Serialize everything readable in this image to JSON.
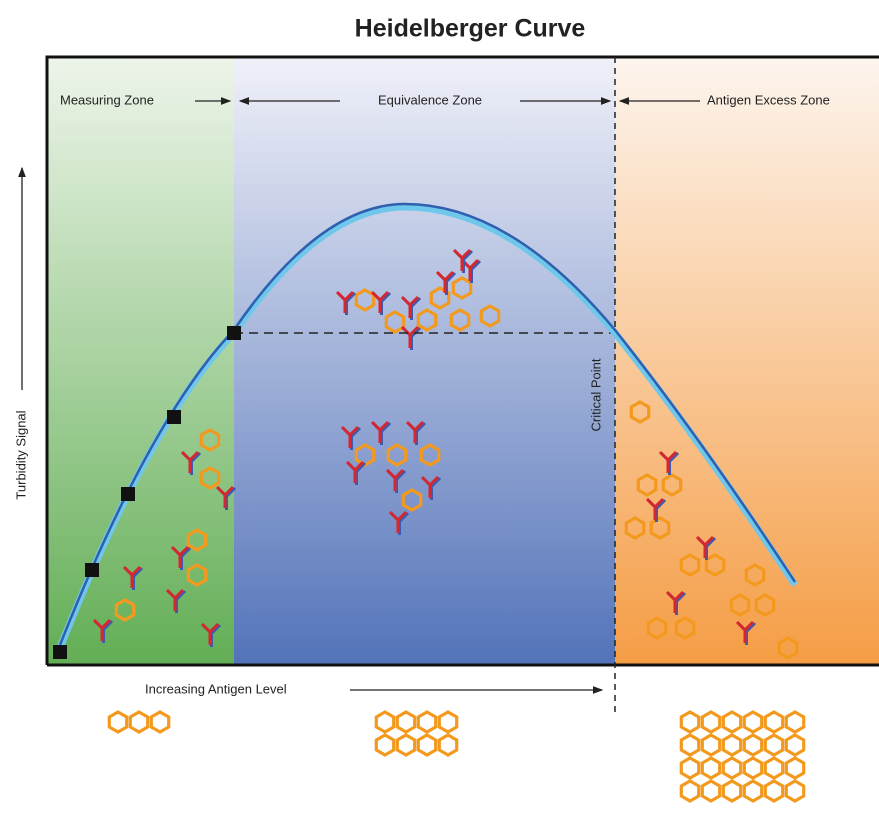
{
  "title": "Heidelberger Curve",
  "zones": {
    "measuring": "Measuring Zone",
    "equivalence": "Equivalence Zone",
    "excess": "Antigen Excess Zone"
  },
  "y_axis_label": "Turbidity Signal",
  "x_axis_label": "Increasing Antigen Level",
  "annotation": "Critical Point"
}
